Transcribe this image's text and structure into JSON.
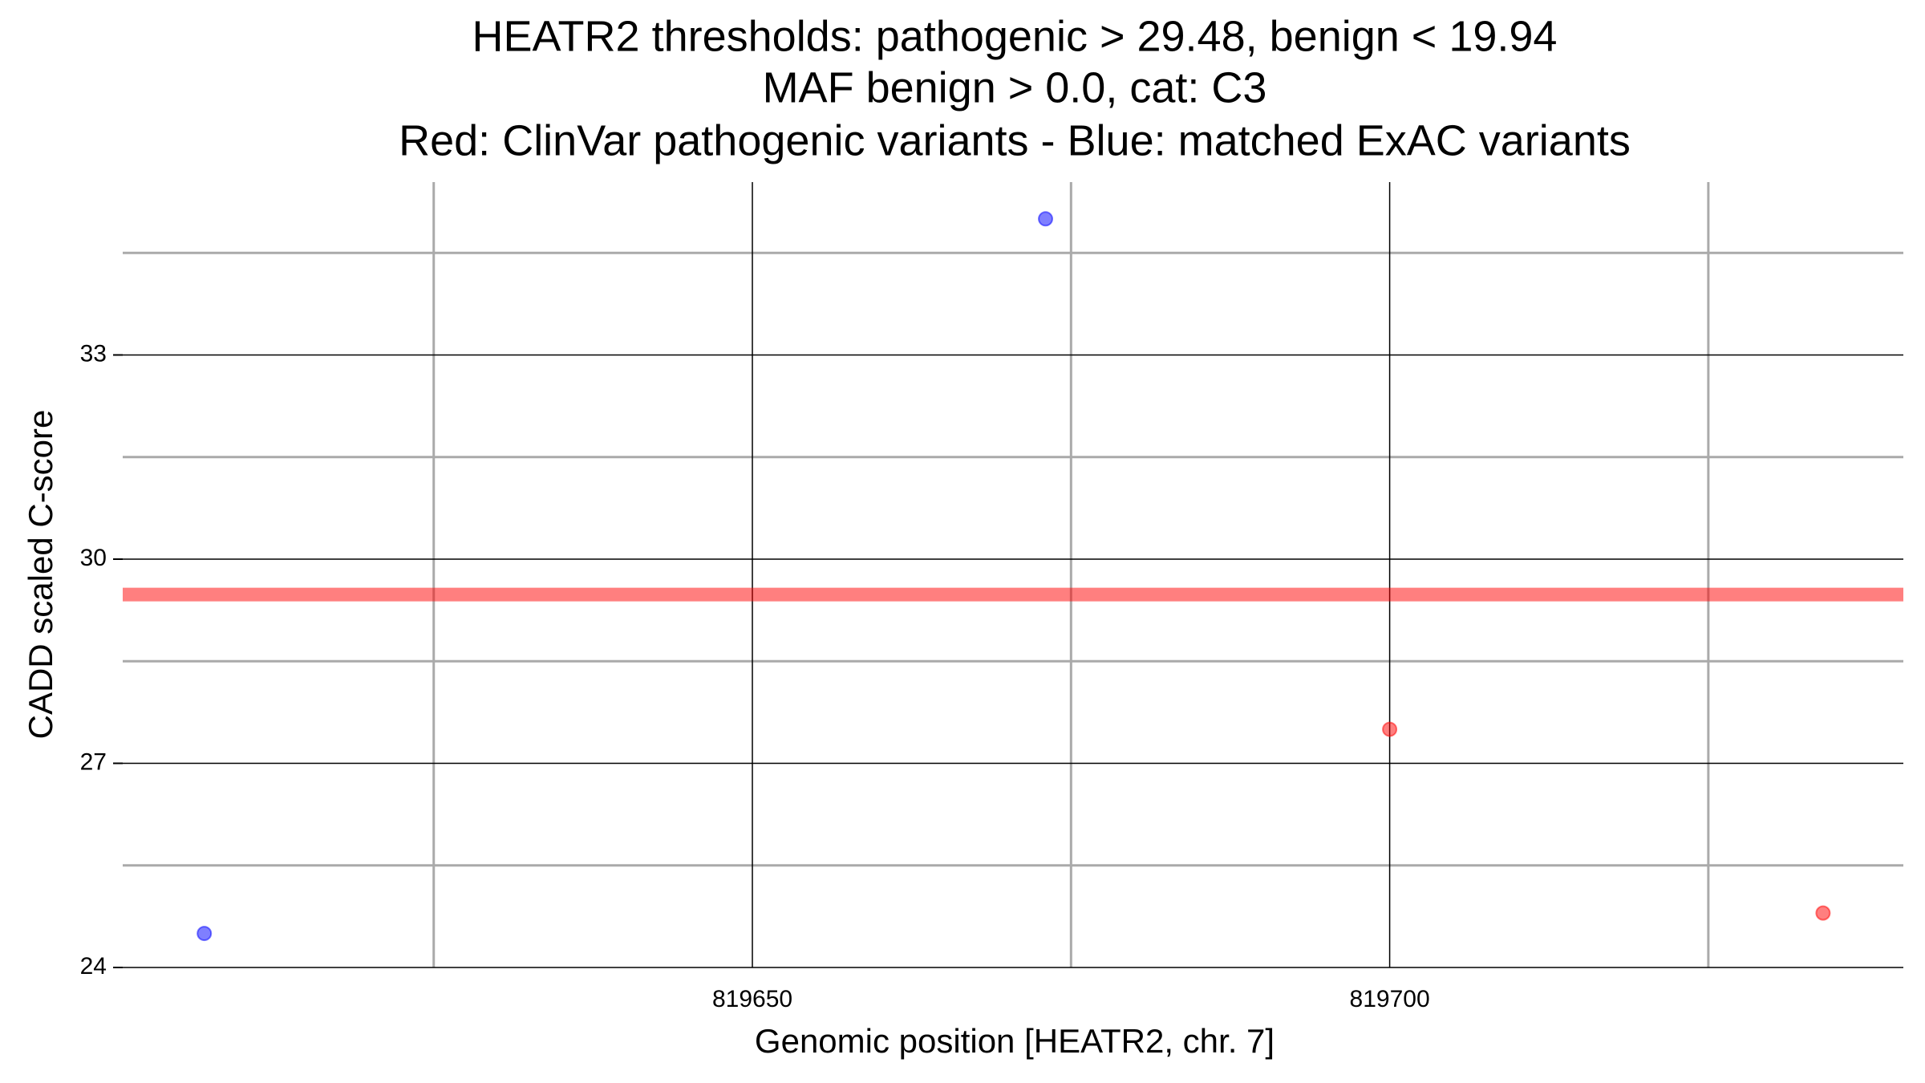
{
  "chart_data": {
    "type": "scatter",
    "title": [
      "HEATR2 thresholds: pathogenic > 29.48, benign < 19.94",
      "MAF benign > 0.0, cat: C3",
      "Red: ClinVar pathogenic variants - Blue: matched ExAC variants"
    ],
    "x_label": "Genomic position [HEATR2, chr. 7]",
    "y_label": "CADD scaled C-score",
    "series": [
      {
        "color": "#ff0000",
        "x": [
          819700,
          819734
        ],
        "values": [
          27.5,
          24.8
        ]
      },
      {
        "color": "#0000ff",
        "x": [
          819607,
          819673
        ],
        "values": [
          24.5,
          35.0
        ]
      }
    ],
    "hlines": [
      {
        "value": 29.48,
        "color": "#ff0000"
      }
    ],
    "xlim": [
      819600.6,
      819740.3
    ],
    "ylim": [
      24,
      35.54
    ],
    "xticks": [
      819650,
      819700
    ],
    "yticks": [
      24,
      27,
      30,
      33
    ],
    "xminor": [
      819625,
      819675,
      819725
    ],
    "yminor": [
      25.5,
      28.5,
      31.5,
      34.5
    ],
    "grid": true
  }
}
